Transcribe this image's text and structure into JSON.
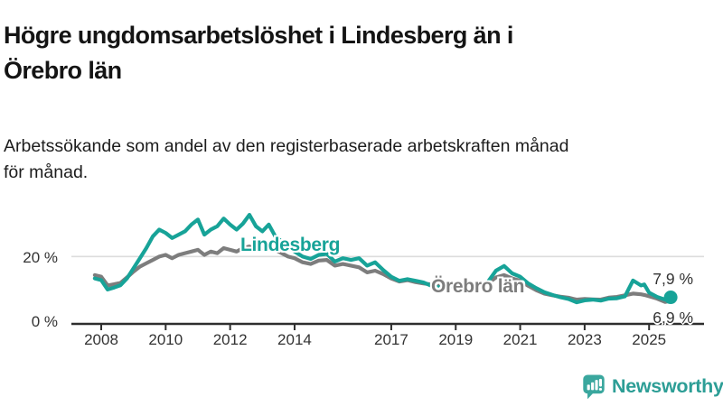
{
  "header": {
    "title": "Högre ungdomsarbetslöshet i Lindesberg än i\nÖrebro län",
    "subtitle": "Arbetssökande som andel av den registerbaserade arbetskraften månad\nför månad."
  },
  "colors": {
    "lindesberg": "#17a398",
    "orebro": "#7d7d7d",
    "axis": "#2e2e2e",
    "grid": "#dcdcdc",
    "text": "#333333",
    "logo_teal": "#3aa79e"
  },
  "chart_data": {
    "type": "line",
    "x_unit": "year (decimal, monthly data)",
    "y_unit": "percent",
    "ylim": [
      0,
      34
    ],
    "grid": "horizontal line at 20 % only",
    "legend_position": "inline labels on lines",
    "x_tick_labels": [
      "2008",
      "2010",
      "2012",
      "2014",
      "2017",
      "2019",
      "2021",
      "2023",
      "2025"
    ],
    "x_tick_years": [
      2008,
      2010,
      2012,
      2014,
      2017,
      2019,
      2021,
      2023,
      2025
    ],
    "y_tick_labels": [
      "20 %",
      "0 %"
    ],
    "y_tick_values": [
      20,
      0
    ],
    "x": [
      2007.8,
      2008.0,
      2008.2,
      2008.4,
      2008.6,
      2008.8,
      2009.0,
      2009.2,
      2009.4,
      2009.6,
      2009.8,
      2010.0,
      2010.2,
      2010.4,
      2010.6,
      2010.8,
      2011.0,
      2011.2,
      2011.4,
      2011.6,
      2011.8,
      2012.0,
      2012.2,
      2012.4,
      2012.6,
      2012.8,
      2013.0,
      2013.2,
      2013.4,
      2013.6,
      2013.8,
      2014.0,
      2014.25,
      2014.5,
      2014.75,
      2015.0,
      2015.25,
      2015.5,
      2015.75,
      2016.0,
      2016.25,
      2016.5,
      2016.75,
      2017.0,
      2017.25,
      2017.5,
      2017.75,
      2018.0,
      2018.25,
      2018.5,
      2018.75,
      2019.0,
      2019.25,
      2019.5,
      2019.75,
      2020.0,
      2020.25,
      2020.5,
      2020.75,
      2021.0,
      2021.25,
      2021.5,
      2021.75,
      2022.0,
      2022.25,
      2022.5,
      2022.75,
      2023.0,
      2023.25,
      2023.5,
      2023.75,
      2024.0,
      2024.25,
      2024.5,
      2024.75,
      2024.85,
      2025.0,
      2025.25,
      2025.5,
      2025.67
    ],
    "series": [
      {
        "name": "Lindesberg",
        "color": "#17a398",
        "end_label": "7,9 %",
        "end_value": 7.9,
        "values": [
          13.5,
          13.0,
          10.2,
          10.8,
          11.5,
          13.5,
          16.5,
          19.5,
          22.5,
          26.0,
          28.0,
          27.0,
          25.5,
          26.5,
          27.5,
          29.5,
          31.0,
          26.5,
          28.0,
          29.0,
          31.3,
          29.5,
          28.0,
          29.8,
          32.4,
          29.0,
          27.5,
          29.5,
          26.0,
          24.5,
          23.0,
          21.5,
          20.0,
          19.3,
          20.5,
          20.8,
          18.5,
          19.5,
          19.0,
          19.5,
          17.3,
          18.3,
          16.0,
          14.0,
          12.8,
          13.3,
          12.8,
          12.3,
          11.3,
          10.8,
          11.3,
          11.0,
          10.4,
          10.8,
          11.3,
          12.5,
          15.8,
          17.2,
          15.0,
          14.0,
          12.0,
          10.6,
          9.4,
          8.6,
          7.9,
          7.4,
          6.4,
          7.0,
          7.2,
          6.9,
          7.5,
          7.6,
          8.2,
          12.9,
          11.4,
          11.7,
          9.3,
          8.0,
          7.2,
          7.9
        ]
      },
      {
        "name": "Örebro län",
        "color": "#7d7d7d",
        "end_label": "6,9 %",
        "end_value": 6.9,
        "values": [
          14.5,
          14.0,
          11.4,
          11.8,
          12.2,
          13.8,
          15.5,
          17.0,
          18.0,
          19.0,
          20.0,
          20.5,
          19.5,
          20.5,
          21.0,
          21.5,
          22.0,
          20.5,
          21.5,
          21.0,
          22.5,
          22.0,
          21.5,
          22.5,
          23.0,
          22.0,
          22.5,
          23.5,
          22.0,
          21.0,
          20.0,
          19.5,
          18.3,
          17.8,
          18.8,
          19.0,
          17.3,
          17.8,
          17.3,
          16.8,
          15.3,
          15.8,
          14.8,
          13.5,
          12.6,
          13.0,
          12.4,
          12.0,
          11.7,
          11.4,
          11.7,
          11.4,
          11.0,
          11.2,
          11.5,
          12.0,
          13.8,
          14.5,
          13.5,
          12.8,
          11.3,
          10.0,
          9.0,
          8.5,
          8.1,
          7.8,
          7.2,
          7.4,
          7.3,
          7.2,
          7.8,
          8.0,
          8.5,
          9.0,
          8.8,
          8.6,
          8.2,
          7.5,
          6.5,
          6.9
        ]
      }
    ]
  },
  "logo": {
    "text": "Newsworthy"
  }
}
